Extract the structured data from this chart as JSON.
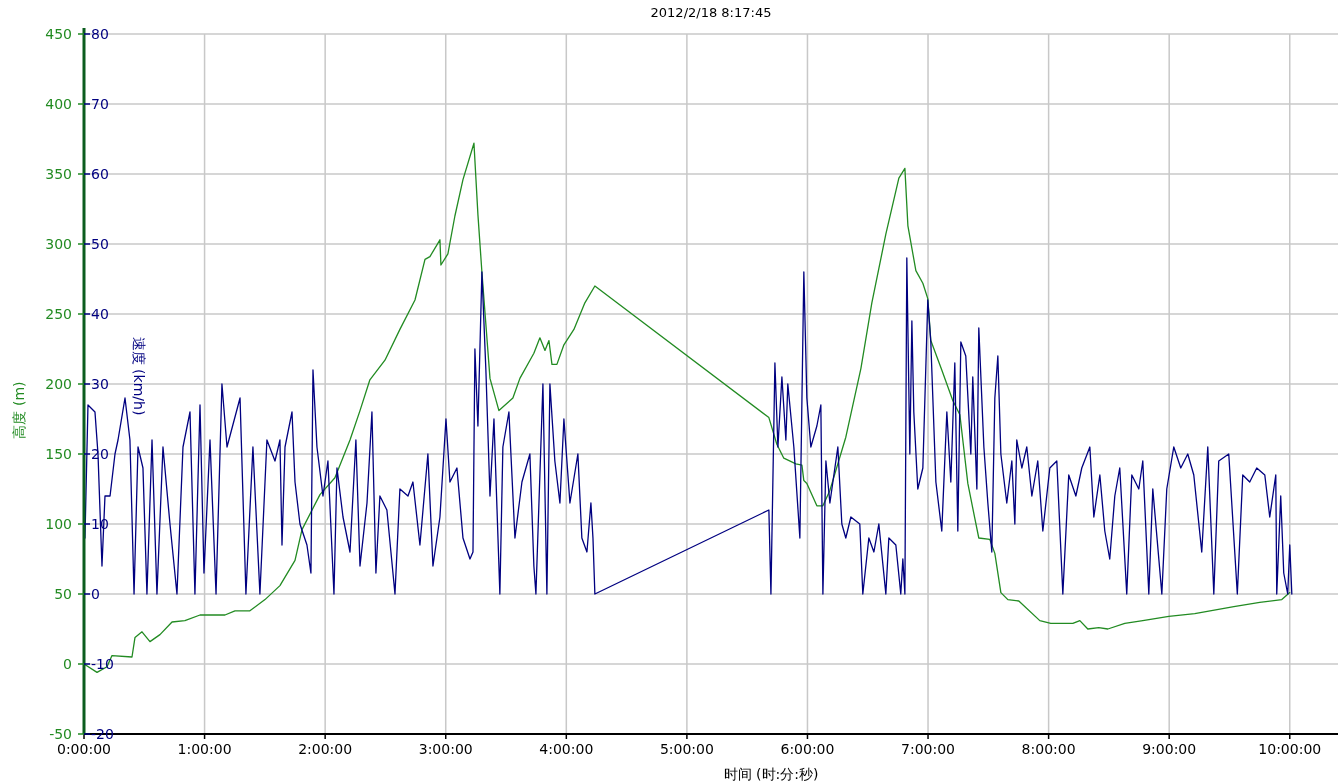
{
  "chart_data": {
    "type": "line",
    "title": "2012/2/18 8:17:45",
    "xlabel": "时间 (时:分:秒)",
    "ylabel": "高度 (m)",
    "y2label": "速度 (km/h)",
    "xlim": [
      0,
      10.4
    ],
    "xticks": [
      {
        "value": 0,
        "label": "0:00:00"
      },
      {
        "value": 1,
        "label": "1:00:00"
      },
      {
        "value": 2,
        "label": "2:00:00"
      },
      {
        "value": 3,
        "label": "3:00:00"
      },
      {
        "value": 4,
        "label": "4:00:00"
      },
      {
        "value": 5,
        "label": "5:00:00"
      },
      {
        "value": 6,
        "label": "6:00:00"
      },
      {
        "value": 7,
        "label": "7:00:00"
      },
      {
        "value": 8,
        "label": "8:00:00"
      },
      {
        "value": 9,
        "label": "9:00:00"
      },
      {
        "value": 10,
        "label": "10:00:00"
      }
    ],
    "ylim": [
      -50,
      450
    ],
    "yticks": [
      -50,
      0,
      50,
      100,
      150,
      200,
      250,
      300,
      350,
      400,
      450
    ],
    "y2lim": [
      -20,
      80
    ],
    "y2ticks": [
      -20,
      -10,
      0,
      10,
      20,
      30,
      40,
      50,
      60,
      70,
      80
    ],
    "grid": true,
    "series": [
      {
        "color": "#228b22",
        "x": [
          0,
          0.108,
          0.191,
          0.232,
          0.398,
          0.423,
          0.481,
          0.547,
          0.63,
          0.73,
          0.837,
          0.962,
          1.169,
          1.252,
          1.376,
          1.501,
          1.625,
          1.75,
          1.808,
          1.957,
          2.081,
          2.206,
          2.289,
          2.371,
          2.496,
          2.62,
          2.745,
          2.828,
          2.869,
          2.952,
          2.96,
          3.018,
          3.076,
          3.143,
          3.234,
          3.267,
          3.3,
          3.367,
          3.441,
          3.557,
          3.615,
          3.731,
          3.781,
          3.823,
          3.856,
          3.881,
          3.922,
          3.98,
          4.063,
          4.154,
          4.237,
          5.68,
          5.746,
          5.804,
          5.904,
          5.954,
          5.97,
          5.995,
          6.078,
          6.128,
          6.186,
          6.318,
          6.443,
          6.534,
          6.65,
          6.758,
          6.808,
          6.833,
          6.899,
          6.957,
          6.998,
          7.023,
          7.114,
          7.206,
          7.264,
          7.33,
          7.388,
          7.421,
          7.512,
          7.554,
          7.604,
          7.662,
          7.753,
          7.927,
          8.018,
          8.201,
          8.259,
          8.325,
          8.416,
          8.491,
          8.632,
          8.781,
          8.997,
          9.212,
          9.536,
          9.751,
          9.934,
          10
        ],
        "values": [
          0,
          -6,
          -2,
          6,
          5,
          19,
          23,
          16,
          21,
          30,
          31,
          35,
          35,
          38,
          38,
          46,
          56,
          74,
          96,
          121,
          133,
          160,
          181,
          203,
          217,
          239,
          260,
          289,
          291,
          303,
          285,
          293,
          320,
          346,
          372,
          321,
          280,
          204,
          181,
          190,
          204,
          222,
          233,
          224,
          231,
          214,
          214,
          228,
          239,
          258,
          270,
          176,
          157,
          147,
          143,
          142,
          131,
          129,
          113,
          113,
          124,
          162,
          211,
          258,
          307,
          347,
          354,
          313,
          281,
          272,
          261,
          231,
          210,
          188,
          178,
          129,
          104,
          90,
          89,
          79,
          51,
          46,
          45,
          31,
          29,
          29,
          31,
          25,
          26,
          25,
          29,
          31,
          34,
          36,
          41,
          44,
          46,
          51
        ]
      },
      {
        "color": "#000080",
        "axis": "y2",
        "x": [
          0.008,
          0.033,
          0.091,
          0.116,
          0.149,
          0.174,
          0.216,
          0.257,
          0.282,
          0.34,
          0.381,
          0.415,
          0.448,
          0.489,
          0.522,
          0.564,
          0.605,
          0.655,
          0.713,
          0.771,
          0.821,
          0.879,
          0.92,
          0.962,
          0.995,
          1.045,
          1.095,
          1.144,
          1.186,
          1.294,
          1.343,
          1.401,
          1.459,
          1.517,
          1.584,
          1.625,
          1.642,
          1.667,
          1.725,
          1.75,
          1.791,
          1.849,
          1.882,
          1.899,
          1.932,
          1.982,
          2.023,
          2.073,
          2.098,
          2.148,
          2.206,
          2.255,
          2.289,
          2.347,
          2.388,
          2.421,
          2.454,
          2.512,
          2.579,
          2.62,
          2.687,
          2.728,
          2.786,
          2.852,
          2.894,
          2.952,
          3.002,
          3.035,
          3.093,
          3.143,
          3.201,
          3.226,
          3.242,
          3.267,
          3.3,
          3.333,
          3.367,
          3.4,
          3.449,
          3.474,
          3.524,
          3.574,
          3.632,
          3.698,
          3.731,
          3.748,
          3.806,
          3.839,
          3.864,
          3.905,
          3.947,
          3.98,
          4.03,
          4.096,
          4.129,
          4.171,
          4.204,
          4.221,
          4.237,
          5.68,
          5.697,
          5.73,
          5.755,
          5.788,
          5.821,
          5.837,
          5.887,
          5.937,
          5.97,
          5.995,
          6.028,
          6.078,
          6.111,
          6.128,
          6.153,
          6.186,
          6.252,
          6.285,
          6.318,
          6.36,
          6.434,
          6.459,
          6.509,
          6.551,
          6.592,
          6.65,
          6.675,
          6.733,
          6.774,
          6.791,
          6.808,
          6.824,
          6.849,
          6.866,
          6.882,
          6.915,
          6.957,
          6.998,
          7.023,
          7.065,
          7.114,
          7.156,
          7.189,
          7.222,
          7.247,
          7.272,
          7.313,
          7.355,
          7.371,
          7.405,
          7.421,
          7.463,
          7.496,
          7.529,
          7.554,
          7.579,
          7.604,
          7.653,
          7.695,
          7.72,
          7.736,
          7.778,
          7.819,
          7.861,
          7.91,
          7.952,
          8.01,
          8.068,
          8.118,
          8.167,
          8.226,
          8.275,
          8.342,
          8.375,
          8.425,
          8.466,
          8.507,
          8.549,
          8.59,
          8.648,
          8.69,
          8.748,
          8.781,
          8.831,
          8.864,
          8.939,
          8.98,
          9.038,
          9.096,
          9.154,
          9.204,
          9.27,
          9.32,
          9.37,
          9.411,
          9.494,
          9.565,
          9.61,
          9.668,
          9.726,
          9.793,
          9.834,
          9.884,
          9.892,
          9.925,
          9.95,
          9.983,
          10,
          10.017
        ],
        "values": [
          8,
          27,
          26,
          20,
          4,
          14,
          14,
          20,
          22,
          28,
          22,
          0,
          21,
          18,
          0,
          22,
          0,
          21,
          10,
          0,
          21,
          26,
          0,
          27,
          3,
          22,
          0,
          30,
          21,
          28,
          0,
          21,
          0,
          22,
          19,
          22,
          7,
          21,
          26,
          16,
          10,
          7,
          3,
          32,
          21,
          14,
          19,
          0,
          18,
          11,
          6,
          22,
          4,
          13,
          26,
          3,
          14,
          12,
          0,
          15,
          14,
          16,
          7,
          20,
          4,
          11,
          25,
          16,
          18,
          8,
          5,
          6,
          35,
          24,
          46,
          32,
          14,
          25,
          0,
          21,
          26,
          8,
          16,
          20,
          4,
          0,
          30,
          0,
          30,
          19,
          13,
          25,
          13,
          20,
          8,
          6,
          13,
          8,
          0,
          12,
          0,
          33,
          21,
          31,
          22,
          30,
          21,
          8,
          46,
          28,
          21,
          24,
          27,
          0,
          19,
          13,
          21,
          10,
          8,
          11,
          10,
          0,
          8,
          6,
          10,
          0,
          8,
          7,
          0,
          5,
          0,
          48,
          20,
          39,
          26,
          15,
          18,
          42,
          36,
          16,
          9,
          26,
          16,
          33,
          9,
          36,
          34,
          20,
          31,
          15,
          38,
          21,
          13,
          6,
          28,
          34,
          20,
          13,
          19,
          10,
          22,
          18,
          21,
          14,
          19,
          9,
          18,
          19,
          0,
          17,
          14,
          18,
          21,
          11,
          17,
          9,
          5,
          14,
          18,
          0,
          17,
          15,
          19,
          0,
          15,
          0,
          15,
          21,
          18,
          20,
          17,
          6,
          21,
          0,
          19,
          20,
          0,
          17,
          16,
          18,
          17,
          11,
          17,
          0,
          14,
          3,
          0,
          7,
          0
        ]
      }
    ]
  }
}
